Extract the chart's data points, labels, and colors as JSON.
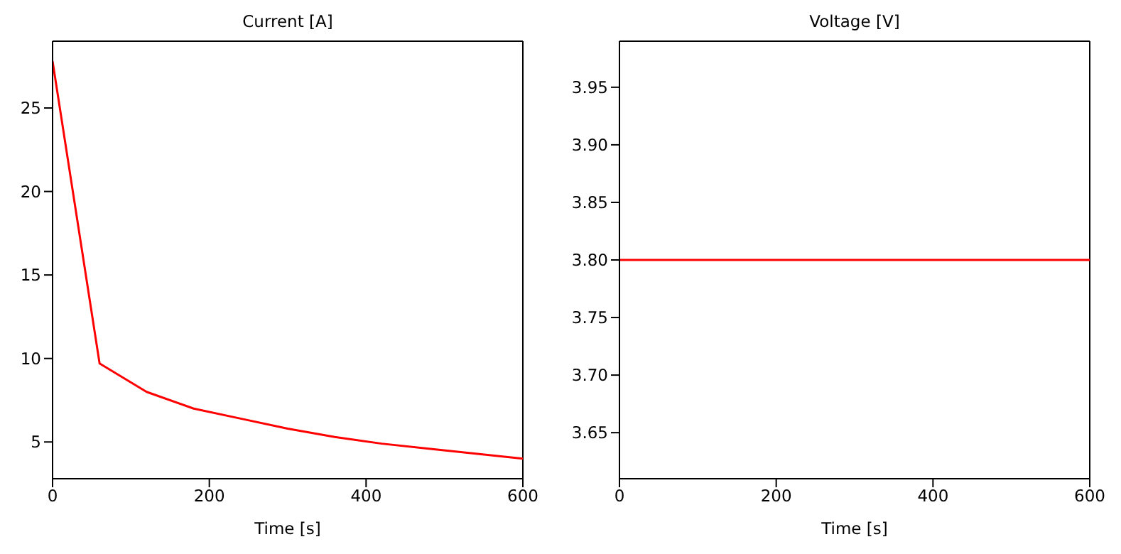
{
  "chart_data": [
    {
      "type": "line",
      "title": "Current [A]",
      "xlabel": "Time [s]",
      "x": [
        0,
        60,
        120,
        180,
        240,
        300,
        360,
        420,
        480,
        540,
        600
      ],
      "series": [
        {
          "color": "#ff0000",
          "values": [
            27.8,
            9.7,
            8.0,
            7.0,
            6.4,
            5.8,
            5.3,
            4.9,
            4.6,
            4.3,
            4.0
          ]
        }
      ],
      "xlim": [
        0,
        600
      ],
      "xticks": [
        0,
        200,
        400,
        600
      ],
      "ylim": [
        2.8,
        29
      ],
      "yticks": [
        5,
        10,
        15,
        20,
        25
      ]
    },
    {
      "type": "line",
      "title": "Voltage [V]",
      "xlabel": "Time [s]",
      "x": [
        0,
        600
      ],
      "series": [
        {
          "color": "#ff0000",
          "values": [
            3.8,
            3.8
          ]
        }
      ],
      "xlim": [
        0,
        600
      ],
      "xticks": [
        0,
        200,
        400,
        600
      ],
      "ylim": [
        3.61,
        3.99
      ],
      "yticks": [
        {
          "value": 3.65,
          "label": "3.65"
        },
        {
          "value": 3.7,
          "label": "3.70"
        },
        {
          "value": 3.75,
          "label": "3.75"
        },
        {
          "value": 3.8,
          "label": "3.80"
        },
        {
          "value": 3.85,
          "label": "3.85"
        },
        {
          "value": 3.9,
          "label": "3.90"
        },
        {
          "value": 3.95,
          "label": "3.95"
        }
      ]
    }
  ]
}
